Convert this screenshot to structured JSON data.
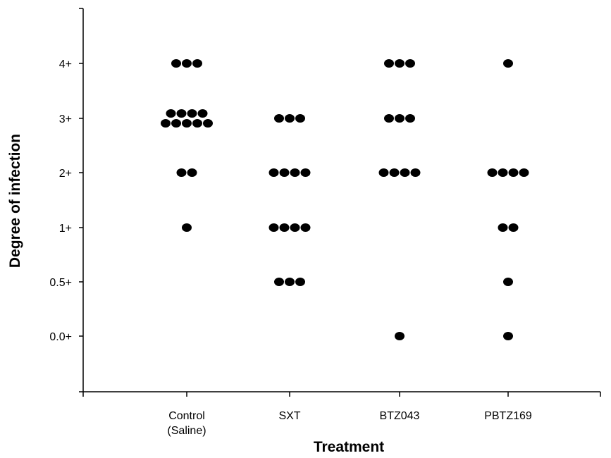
{
  "chart_data": {
    "type": "scatter",
    "subtype": "dot-plot",
    "title": "",
    "xlabel": "Treatment",
    "ylabel": "Degree of infection",
    "categories": [
      [
        "Control",
        "(Saline)"
      ],
      [
        "SXT"
      ],
      [
        "BTZ043"
      ],
      [
        "PBTZ169"
      ]
    ],
    "y_levels": [
      "0.0+",
      "0.5+",
      "1+",
      "2+",
      "3+",
      "4+"
    ],
    "points": [
      {
        "category": 0,
        "level": "4+",
        "count": 3
      },
      {
        "category": 0,
        "level": "3+",
        "count": 9
      },
      {
        "category": 0,
        "level": "2+",
        "count": 2
      },
      {
        "category": 0,
        "level": "1+",
        "count": 1
      },
      {
        "category": 1,
        "level": "3+",
        "count": 3
      },
      {
        "category": 1,
        "level": "2+",
        "count": 4
      },
      {
        "category": 1,
        "level": "1+",
        "count": 4
      },
      {
        "category": 1,
        "level": "0.5+",
        "count": 3
      },
      {
        "category": 2,
        "level": "4+",
        "count": 3
      },
      {
        "category": 2,
        "level": "3+",
        "count": 3
      },
      {
        "category": 2,
        "level": "2+",
        "count": 4
      },
      {
        "category": 2,
        "level": "0.0+",
        "count": 1
      },
      {
        "category": 3,
        "level": "4+",
        "count": 1
      },
      {
        "category": 3,
        "level": "2+",
        "count": 4
      },
      {
        "category": 3,
        "level": "1+",
        "count": 2
      },
      {
        "category": 3,
        "level": "0.5+",
        "count": 1
      },
      {
        "category": 3,
        "level": "0.0+",
        "count": 1
      }
    ],
    "marker_color": "#000000",
    "axis_color": "#000000",
    "grid": false,
    "legend": "none"
  }
}
